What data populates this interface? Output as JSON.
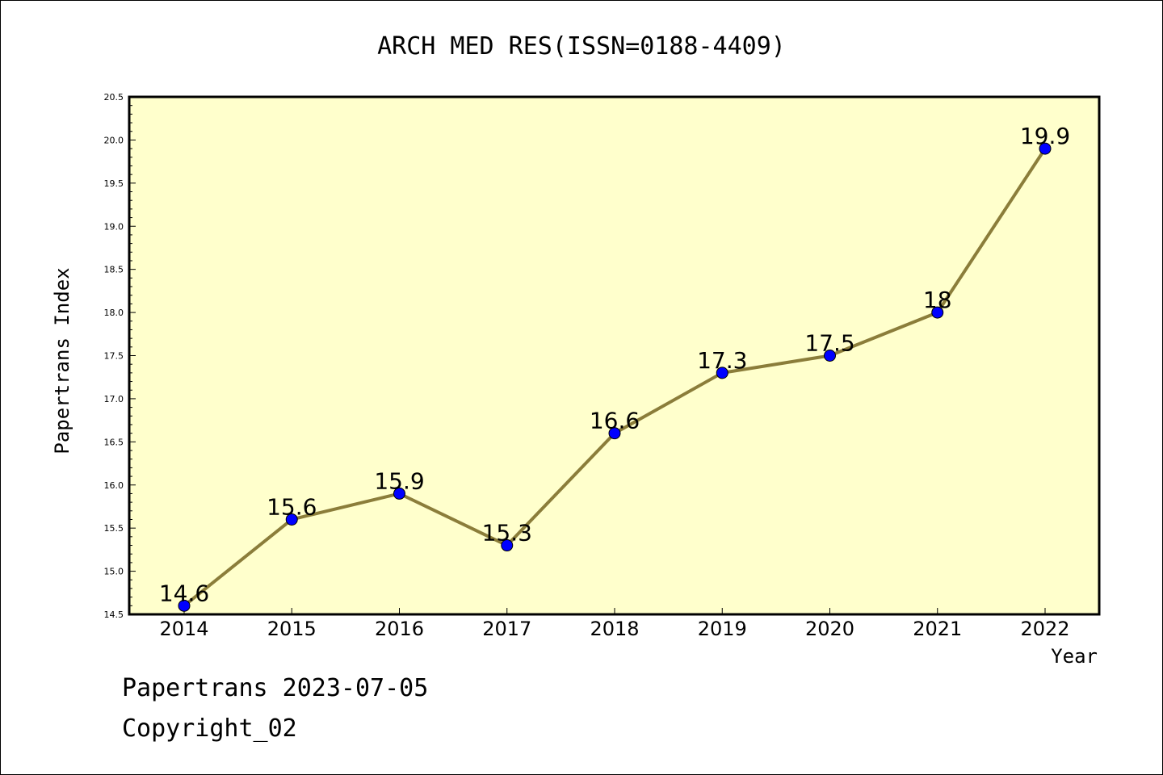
{
  "chart_data": {
    "type": "line",
    "title": "ARCH MED RES(ISSN=0188-4409)",
    "xlabel": "Year",
    "ylabel": "Papertrans Index",
    "categories": [
      "2014",
      "2015",
      "2016",
      "2017",
      "2018",
      "2019",
      "2020",
      "2021",
      "2022"
    ],
    "values": [
      14.6,
      15.6,
      15.9,
      15.3,
      16.6,
      17.3,
      17.5,
      18,
      19.9
    ],
    "data_labels": [
      "14.6",
      "15.6",
      "15.9",
      "15.3",
      "16.6",
      "17.3",
      "17.5",
      "18",
      "19.9"
    ],
    "ylim": [
      14.5,
      20.5
    ],
    "yticks": [
      "14.5",
      "15.0",
      "15.5",
      "16.0",
      "16.5",
      "17.0",
      "17.5",
      "18.0",
      "18.5",
      "19.0",
      "19.5",
      "20.0",
      "20.5"
    ],
    "grid": false,
    "colors": {
      "plot_background": "#ffffcc",
      "line": "#8b7d3a",
      "marker": "#0000ff"
    }
  },
  "footer": {
    "line1": "Papertrans 2023-07-05",
    "line2": "Copyright_02"
  }
}
